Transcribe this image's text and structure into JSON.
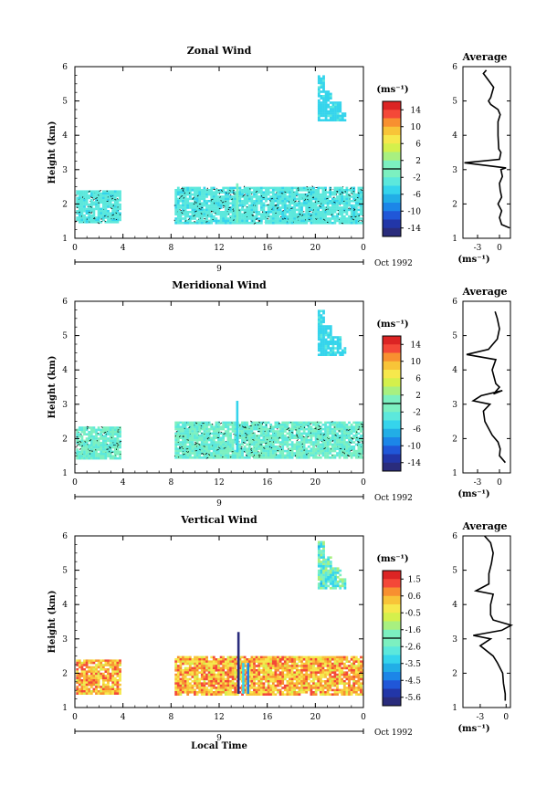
{
  "chart_data": [
    {
      "type": "heatmap",
      "title": "Zonal Wind",
      "ylabel": "Height (km)",
      "xlabel": "",
      "xlim": [
        0,
        24
      ],
      "ylim": [
        1,
        6
      ],
      "x_ticks": [
        "0",
        "4",
        "8",
        "12",
        "16",
        "20",
        "0"
      ],
      "y_ticks": [
        "1",
        "2",
        "3",
        "4",
        "5",
        "6"
      ],
      "day_label": "9",
      "date_label": "Oct 1992",
      "colorbar": {
        "unit": "(ms⁻¹)",
        "ticks": [
          "14",
          "10",
          "6",
          "2",
          "-2",
          "-6",
          "-10",
          "-14"
        ],
        "vmin": -16,
        "vmax": 16
      },
      "regions": [
        {
          "t0": 0.1,
          "t1": 3.8,
          "h0": 1.45,
          "h1": 2.4,
          "value": -2.5
        },
        {
          "t0": 8.3,
          "t1": 24,
          "h0": 1.45,
          "h1": 2.5,
          "value": -2.5
        },
        {
          "t0": 20,
          "t1": 22.5,
          "h0": 4.45,
          "h1": 5.75,
          "value": -4.0
        }
      ],
      "spikes": [
        {
          "t": 13.5,
          "h0": 1.45,
          "h1": 2.6,
          "value": -0.5
        }
      ],
      "average_profile": {
        "title": "Average",
        "xlabel": "(ms⁻¹)",
        "x_ticks": [
          "-3",
          "0"
        ],
        "xlim": [
          -5,
          1.5
        ],
        "points": [
          [
            1.4,
            1.3
          ],
          [
            0.3,
            1.4
          ],
          [
            0.0,
            1.6
          ],
          [
            0.3,
            1.8
          ],
          [
            -0.2,
            2.0
          ],
          [
            0.3,
            2.2
          ],
          [
            0.1,
            2.4
          ],
          [
            0.0,
            2.6
          ],
          [
            0.4,
            2.8
          ],
          [
            0.2,
            3.0
          ],
          [
            0.9,
            3.05
          ],
          [
            -4.8,
            3.2
          ],
          [
            0.0,
            3.3
          ],
          [
            0.2,
            3.5
          ],
          [
            -0.1,
            3.6
          ],
          [
            -0.2,
            4.0
          ],
          [
            -0.2,
            4.4
          ],
          [
            0.1,
            4.6
          ],
          [
            -0.2,
            4.75
          ],
          [
            -1.2,
            4.9
          ],
          [
            -1.5,
            5.0
          ],
          [
            -1.2,
            5.1
          ],
          [
            -0.8,
            5.4
          ],
          [
            -1.5,
            5.6
          ],
          [
            -2.2,
            5.8
          ],
          [
            -1.8,
            5.9
          ]
        ]
      }
    },
    {
      "type": "heatmap",
      "title": "Meridional Wind",
      "ylabel": "Height (km)",
      "xlabel": "",
      "xlim": [
        0,
        24
      ],
      "ylim": [
        1,
        6
      ],
      "x_ticks": [
        "0",
        "4",
        "8",
        "12",
        "16",
        "20",
        "0"
      ],
      "y_ticks": [
        "1",
        "2",
        "3",
        "4",
        "5",
        "6"
      ],
      "day_label": "9",
      "date_label": "Oct 1992",
      "colorbar": {
        "unit": "(ms⁻¹)",
        "ticks": [
          "14",
          "10",
          "6",
          "2",
          "-2",
          "-6",
          "-10",
          "-14"
        ],
        "vmin": -16,
        "vmax": 16
      },
      "regions": [
        {
          "t0": 0.1,
          "t1": 3.8,
          "h0": 1.45,
          "h1": 2.35,
          "value": -1.0
        },
        {
          "t0": 8.3,
          "t1": 24,
          "h0": 1.45,
          "h1": 2.5,
          "value": -1.0
        },
        {
          "t0": 20,
          "t1": 22.5,
          "h0": 4.45,
          "h1": 5.75,
          "value": -4.0
        }
      ],
      "spikes": [
        {
          "t": 13.5,
          "h0": 1.6,
          "h1": 3.1,
          "value": -5.0
        }
      ],
      "average_profile": {
        "title": "Average",
        "xlabel": "(ms⁻¹)",
        "x_ticks": [
          "-3",
          "0"
        ],
        "xlim": [
          -5,
          1.5
        ],
        "points": [
          [
            0.8,
            1.3
          ],
          [
            0.0,
            1.5
          ],
          [
            0.1,
            1.7
          ],
          [
            -0.2,
            1.9
          ],
          [
            -1.0,
            2.1
          ],
          [
            -1.5,
            2.3
          ],
          [
            -2.0,
            2.5
          ],
          [
            -2.2,
            2.8
          ],
          [
            -1.3,
            3.0
          ],
          [
            -3.6,
            3.1
          ],
          [
            -2.5,
            3.25
          ],
          [
            0.4,
            3.4
          ],
          [
            -0.8,
            3.3
          ],
          [
            0.0,
            3.5
          ],
          [
            -0.5,
            3.6
          ],
          [
            -1.0,
            4.0
          ],
          [
            -0.5,
            4.3
          ],
          [
            -4.5,
            4.45
          ],
          [
            -1.5,
            4.6
          ],
          [
            -0.3,
            4.9
          ],
          [
            0.0,
            5.2
          ],
          [
            -0.3,
            5.5
          ],
          [
            -0.6,
            5.7
          ]
        ]
      }
    },
    {
      "type": "heatmap",
      "title": "Vertical Wind",
      "ylabel": "Height (km)",
      "xlabel": "Local Time",
      "xlim": [
        0,
        24
      ],
      "ylim": [
        1,
        6
      ],
      "x_ticks": [
        "0",
        "4",
        "8",
        "12",
        "16",
        "20",
        "0"
      ],
      "y_ticks": [
        "1",
        "2",
        "3",
        "4",
        "5",
        "6"
      ],
      "day_label": "9",
      "date_label": "Oct 1992",
      "colorbar": {
        "unit": "(ms⁻¹)",
        "ticks": [
          "1.5",
          "0.6",
          "-0.5",
          "-1.6",
          "-2.6",
          "-3.5",
          "-4.5",
          "-5.6"
        ],
        "vmin": -6.0,
        "vmax": 2.0
      },
      "regions": [
        {
          "t0": 0.1,
          "t1": 3.8,
          "h0": 1.4,
          "h1": 2.4,
          "value": 0.3
        },
        {
          "t0": 8.3,
          "t1": 24,
          "h0": 1.4,
          "h1": 2.5,
          "value": 0.3
        },
        {
          "t0": 20,
          "t1": 22.5,
          "h0": 4.5,
          "h1": 5.85,
          "value": -2.3
        }
      ],
      "spikes": [
        {
          "t": 13.6,
          "h0": 1.4,
          "h1": 3.2,
          "value": -5.8
        },
        {
          "t": 14.0,
          "h0": 1.4,
          "h1": 2.3,
          "value": -3.0
        },
        {
          "t": 14.4,
          "h0": 1.4,
          "h1": 2.3,
          "value": -4.2
        }
      ],
      "average_profile": {
        "title": "Average",
        "xlabel": "(ms⁻¹)",
        "x_ticks": [
          "-3",
          "0"
        ],
        "xlim": [
          -5,
          0.5
        ],
        "points": [
          [
            -0.1,
            1.2
          ],
          [
            -0.1,
            1.4
          ],
          [
            -0.3,
            1.7
          ],
          [
            -0.4,
            2.0
          ],
          [
            -1.0,
            2.3
          ],
          [
            -1.5,
            2.5
          ],
          [
            -3.0,
            2.8
          ],
          [
            -1.8,
            3.0
          ],
          [
            -3.8,
            3.1
          ],
          [
            -0.5,
            3.25
          ],
          [
            0.6,
            3.4
          ],
          [
            -1.5,
            3.55
          ],
          [
            -1.8,
            3.7
          ],
          [
            -1.8,
            4.0
          ],
          [
            -1.5,
            4.3
          ],
          [
            -3.5,
            4.4
          ],
          [
            -2.0,
            4.6
          ],
          [
            -2.0,
            4.9
          ],
          [
            -1.7,
            5.2
          ],
          [
            -1.5,
            5.5
          ],
          [
            -1.8,
            5.8
          ],
          [
            -2.5,
            6.0
          ]
        ]
      }
    }
  ]
}
